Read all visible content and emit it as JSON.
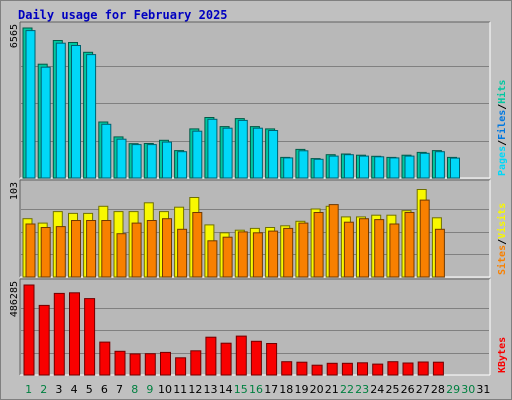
{
  "title": "Daily usage for February 2025",
  "colors": {
    "hits": "#00c8a0",
    "files": "#0078e0",
    "pages": "#00d8f8",
    "visits": "#f8f800",
    "sites": "#f88000",
    "kbytes": "#f80000",
    "weekend": "#008040",
    "day": "#004080"
  },
  "chart_data": {
    "type": "bar",
    "categories": [
      "1",
      "2",
      "3",
      "4",
      "5",
      "6",
      "7",
      "8",
      "9",
      "10",
      "11",
      "12",
      "13",
      "14",
      "15",
      "16",
      "17",
      "18",
      "19",
      "20",
      "21",
      "22",
      "23",
      "24",
      "25",
      "26",
      "27",
      "28",
      "29",
      "30",
      "31"
    ],
    "weekend_days": [
      "1",
      "2",
      "8",
      "9",
      "15",
      "16",
      "22",
      "23",
      "29",
      "30"
    ],
    "panels": [
      {
        "max_label": "6565",
        "ymax": 6565,
        "legend": [
          {
            "text": "Hits",
            "color": "#00c8a0"
          },
          {
            "text": "Files",
            "color": "#0078e0"
          },
          {
            "text": "Pages",
            "color": "#00d8f8"
          }
        ],
        "series": [
          {
            "name": "Hits",
            "color": "#00c8a0",
            "values": [
              6565,
              4980,
              6020,
              5930,
              5500,
              2450,
              1800,
              1500,
              1510,
              1650,
              1200,
              2150,
              2650,
              2250,
              2600,
              2250,
              2150,
              900,
              1250,
              850,
              1020,
              1050,
              1000,
              950,
              900,
              1000,
              1120,
              1200,
              900,
              0,
              0
            ]
          },
          {
            "name": "Pages",
            "color": "#00d8f8",
            "values": [
              6450,
              4850,
              5900,
              5800,
              5400,
              2350,
              1700,
              1460,
              1460,
              1570,
              1150,
              2050,
              2570,
              2180,
              2520,
              2180,
              2080,
              880,
              1190,
              820,
              960,
              1020,
              960,
              930,
              880,
              960,
              1080,
              1150,
              870,
              0,
              0
            ]
          }
        ]
      },
      {
        "max_label": "103",
        "ymax": 103,
        "legend": [
          {
            "text": "Visits",
            "color": "#f8f800"
          },
          {
            "text": "Sites",
            "color": "#f88000"
          }
        ],
        "series": [
          {
            "name": "Visits",
            "color": "#f8f800",
            "values": [
              66,
              61,
              74,
              72,
              72,
              80,
              74,
              74,
              84,
              74,
              79,
              90,
              59,
              50,
              53,
              55,
              56,
              58,
              63,
              77,
              80,
              68,
              68,
              70,
              70,
              75,
              99,
              67,
              0,
              0,
              0
            ]
          },
          {
            "name": "Sites",
            "color": "#f88000",
            "values": [
              60,
              56,
              57,
              64,
              64,
              64,
              49,
              61,
              64,
              66,
              54,
              73,
              41,
              45,
              51,
              50,
              52,
              55,
              61,
              73,
              82,
              62,
              66,
              65,
              60,
              73,
              87,
              54,
              0,
              0,
              0
            ]
          }
        ]
      },
      {
        "max_label": "486285",
        "ymax": 486285,
        "legend": [
          {
            "text": "KBytes",
            "color": "#f80000"
          }
        ],
        "series": [
          {
            "name": "KBytes",
            "color": "#f80000",
            "values": [
              486285,
              376000,
              441000,
              444000,
              413000,
              178000,
              128000,
              114000,
              115000,
              122000,
              93000,
              131000,
              204000,
              172000,
              210000,
              182000,
              170000,
              72000,
              69000,
              53000,
              63000,
              63000,
              66000,
              59000,
              72000,
              65000,
              70000,
              69000,
              0,
              0,
              0
            ]
          }
        ]
      }
    ]
  }
}
